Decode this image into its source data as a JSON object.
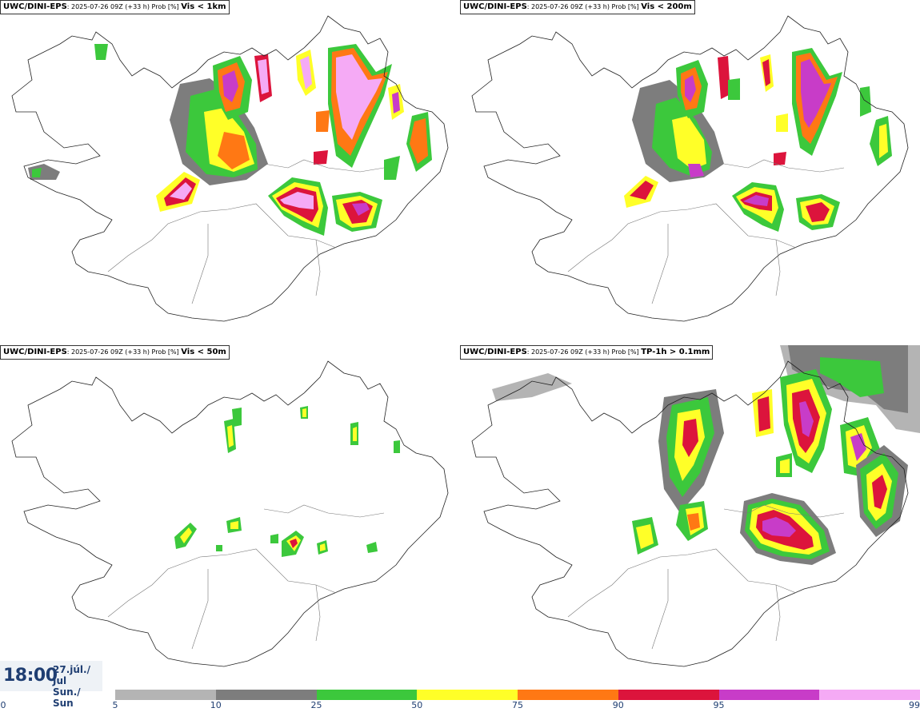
{
  "panels": [
    {
      "model": "UWC/DINI-EPS",
      "run": ": 2025-07-26 09Z (+33 h) Prob [%] ",
      "variable": "Vis < 1km"
    },
    {
      "model": "UWC/DINI-EPS",
      "run": ": 2025-07-26 09Z (+33 h) Prob [%] ",
      "variable": "Vis < 200m"
    },
    {
      "model": "UWC/DINI-EPS",
      "run": ": 2025-07-26 09Z (+33 h) Prob [%] ",
      "variable": "Vis < 50m"
    },
    {
      "model": "UWC/DINI-EPS",
      "run": ": 2025-07-26 09Z (+33 h) Prob [%] ",
      "variable": "TP-1h > 0.1mm"
    }
  ],
  "valid_time": {
    "time": "18:00",
    "date_line1": "27.júl./ Jul",
    "date_line2": "Sun./ Sun"
  },
  "colorbar": {
    "ticks": [
      "0",
      "5",
      "10",
      "25",
      "50",
      "75",
      "90",
      "95",
      "99"
    ],
    "colors": [
      "#b4b4b4",
      "#7d7d7d",
      "#3cc83c",
      "#ffff28",
      "#ff7814",
      "#dc143c",
      "#c83cc8",
      "#f5aaf5"
    ]
  }
}
